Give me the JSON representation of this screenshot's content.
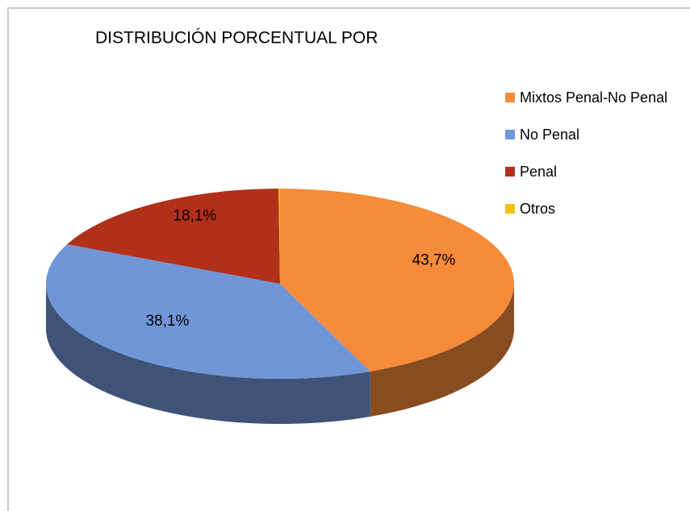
{
  "chart_data": {
    "type": "pie3d",
    "title": "DISTRIBUCIÓN PORCENTUAL POR",
    "categories": [
      "Mixtos Penal-No Penal",
      "No Penal",
      "Penal",
      "Otros"
    ],
    "values": [
      43.7,
      38.1,
      18.1,
      0.1
    ],
    "value_labels": [
      "43,7%",
      "38,1%",
      "18,1%",
      null
    ],
    "colors": [
      "#f68b3a",
      "#7096d8",
      "#b0301a",
      "#f2c314"
    ],
    "legend": "right"
  }
}
